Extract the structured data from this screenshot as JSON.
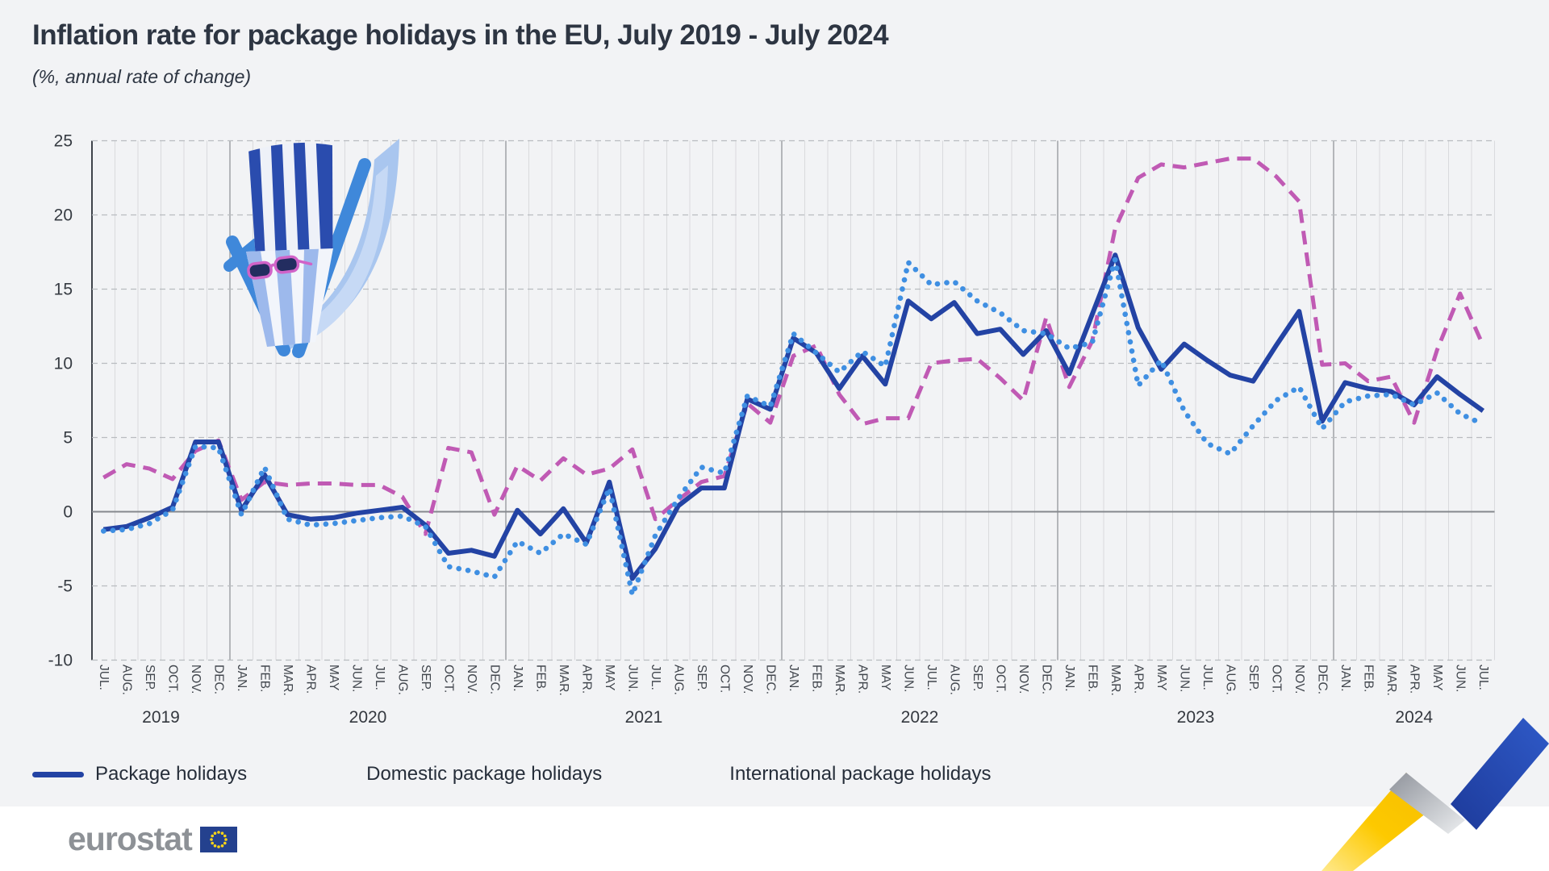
{
  "header": {
    "title": "Inflation rate for package holidays in the EU, July 2019 - July 2024",
    "subtitle": "(%, annual rate of change)"
  },
  "footer": {
    "brand": "eurostat"
  },
  "colors": {
    "background": "#f2f3f5",
    "package": "#2343a4",
    "domestic": "#c05ab4",
    "international": "#3f8fe2",
    "zero_line": "#85888d",
    "gridline": "#d9dadd",
    "year_separator": "#9a9ca1",
    "dashed_gridline": "#b9bcc0",
    "axis": "#3f444b",
    "eu_flag_blue": "#24418e",
    "eu_star_yellow": "#ffd617",
    "ribbon_yellow": "#fdc900",
    "ribbon_blue": "#2a50b8"
  },
  "legend": {
    "items": [
      {
        "label": "Package holidays",
        "style": "solid",
        "color": "#2343a4"
      },
      {
        "label": "Domestic package holidays",
        "style": "dashed",
        "color": "#c05ab4"
      },
      {
        "label": "International package holidays",
        "style": "dotted",
        "color": "#3f8fe2"
      }
    ]
  },
  "chart_data": {
    "type": "line",
    "title": "Inflation rate for package holidays in the EU, July 2019 - July 2024",
    "ylabel": "%, annual rate of change",
    "ylim": [
      -10,
      25
    ],
    "yticks": [
      25,
      20,
      15,
      10,
      5,
      0,
      -5,
      -10
    ],
    "grid": "vertical monthly + horizontal dashed at 5-unit steps, solid zero line",
    "legend_position": "bottom-left",
    "x_labels": [
      "JUL.",
      "AUG.",
      "SEP.",
      "OCT.",
      "NOV.",
      "DEC.",
      "JAN.",
      "FEB.",
      "MAR.",
      "APR.",
      "MAY",
      "JUN.",
      "JUL.",
      "AUG.",
      "SEP.",
      "OCT.",
      "NOV.",
      "DEC.",
      "JAN.",
      "FEB.",
      "MAR.",
      "APR.",
      "MAY",
      "JUN.",
      "JUL.",
      "AUG.",
      "SEP.",
      "OCT.",
      "NOV.",
      "DEC.",
      "JAN.",
      "FEB.",
      "MAR.",
      "APR.",
      "MAY",
      "JUN.",
      "JUL.",
      "AUG.",
      "SEP.",
      "OCT.",
      "NOV.",
      "DEC.",
      "JAN.",
      "FEB.",
      "MAR.",
      "APR.",
      "MAY",
      "JUN.",
      "JUL.",
      "AUG.",
      "SEP.",
      "OCT.",
      "NOV.",
      "DEC.",
      "JAN.",
      "FEB.",
      "MAR.",
      "APR.",
      "MAY",
      "JUN.",
      "JUL."
    ],
    "years": [
      {
        "label": "2019",
        "months": 6
      },
      {
        "label": "2020",
        "months": 12
      },
      {
        "label": "2021",
        "months": 12
      },
      {
        "label": "2022",
        "months": 12
      },
      {
        "label": "2023",
        "months": 12
      },
      {
        "label": "2024",
        "months": 7
      }
    ],
    "series": [
      {
        "name": "Package holidays",
        "style": "solid",
        "color": "#2343a4",
        "values": [
          -1.2,
          -1.0,
          -0.4,
          0.3,
          4.7,
          4.7,
          0.1,
          2.5,
          -0.2,
          -0.5,
          -0.4,
          -0.1,
          0.1,
          0.3,
          -0.9,
          -2.8,
          -2.6,
          -3.0,
          0.1,
          -1.5,
          0.2,
          -2.1,
          2.0,
          -4.5,
          -2.5,
          0.4,
          1.6,
          1.6,
          7.6,
          6.9,
          11.7,
          10.7,
          8.3,
          10.5,
          8.6,
          14.2,
          13.0,
          14.1,
          12.0,
          12.3,
          10.6,
          12.2,
          9.3,
          13.3,
          17.3,
          12.4,
          9.6,
          11.3,
          10.2,
          9.2,
          8.8,
          11.2,
          13.5,
          6.1,
          8.7,
          8.3,
          8.1,
          7.2,
          9.1,
          7.9,
          6.8
        ]
      },
      {
        "name": "Domestic package holidays",
        "style": "dashed",
        "color": "#c05ab4",
        "values": [
          2.3,
          3.2,
          2.9,
          2.2,
          4.1,
          4.8,
          0.8,
          2.0,
          1.8,
          1.9,
          1.9,
          1.8,
          1.8,
          1.0,
          -1.5,
          4.3,
          4.0,
          -0.2,
          3.1,
          2.1,
          3.6,
          2.5,
          2.9,
          4.2,
          -0.5,
          0.8,
          2.0,
          2.4,
          7.3,
          6.0,
          10.5,
          11.2,
          7.9,
          5.9,
          6.3,
          6.3,
          10.0,
          10.2,
          10.3,
          9.0,
          7.5,
          13.1,
          8.4,
          11.5,
          19.1,
          22.5,
          23.4,
          23.2,
          23.5,
          23.8,
          23.8,
          22.6,
          20.9,
          9.9,
          10.0,
          8.8,
          9.1,
          6.0,
          10.9,
          14.7,
          11.2
        ]
      },
      {
        "name": "International package holidays",
        "style": "dotted",
        "color": "#3f8fe2",
        "values": [
          -1.3,
          -1.2,
          -0.8,
          0.1,
          4.4,
          4.3,
          -0.2,
          3.0,
          -0.5,
          -0.9,
          -0.8,
          -0.6,
          -0.4,
          -0.3,
          -1.0,
          -3.7,
          -4.0,
          -4.4,
          -2.0,
          -2.8,
          -1.5,
          -2.2,
          1.6,
          -5.6,
          -1.6,
          0.9,
          3.0,
          2.6,
          7.8,
          7.1,
          12.0,
          10.7,
          9.4,
          10.8,
          9.8,
          16.8,
          15.3,
          15.5,
          14.2,
          13.4,
          12.2,
          12.0,
          11.0,
          11.4,
          17.0,
          8.5,
          10.2,
          6.8,
          4.6,
          3.9,
          5.8,
          7.5,
          8.4,
          5.6,
          7.4,
          7.8,
          7.9,
          7.2,
          8.0,
          6.6,
          5.9
        ]
      }
    ]
  }
}
